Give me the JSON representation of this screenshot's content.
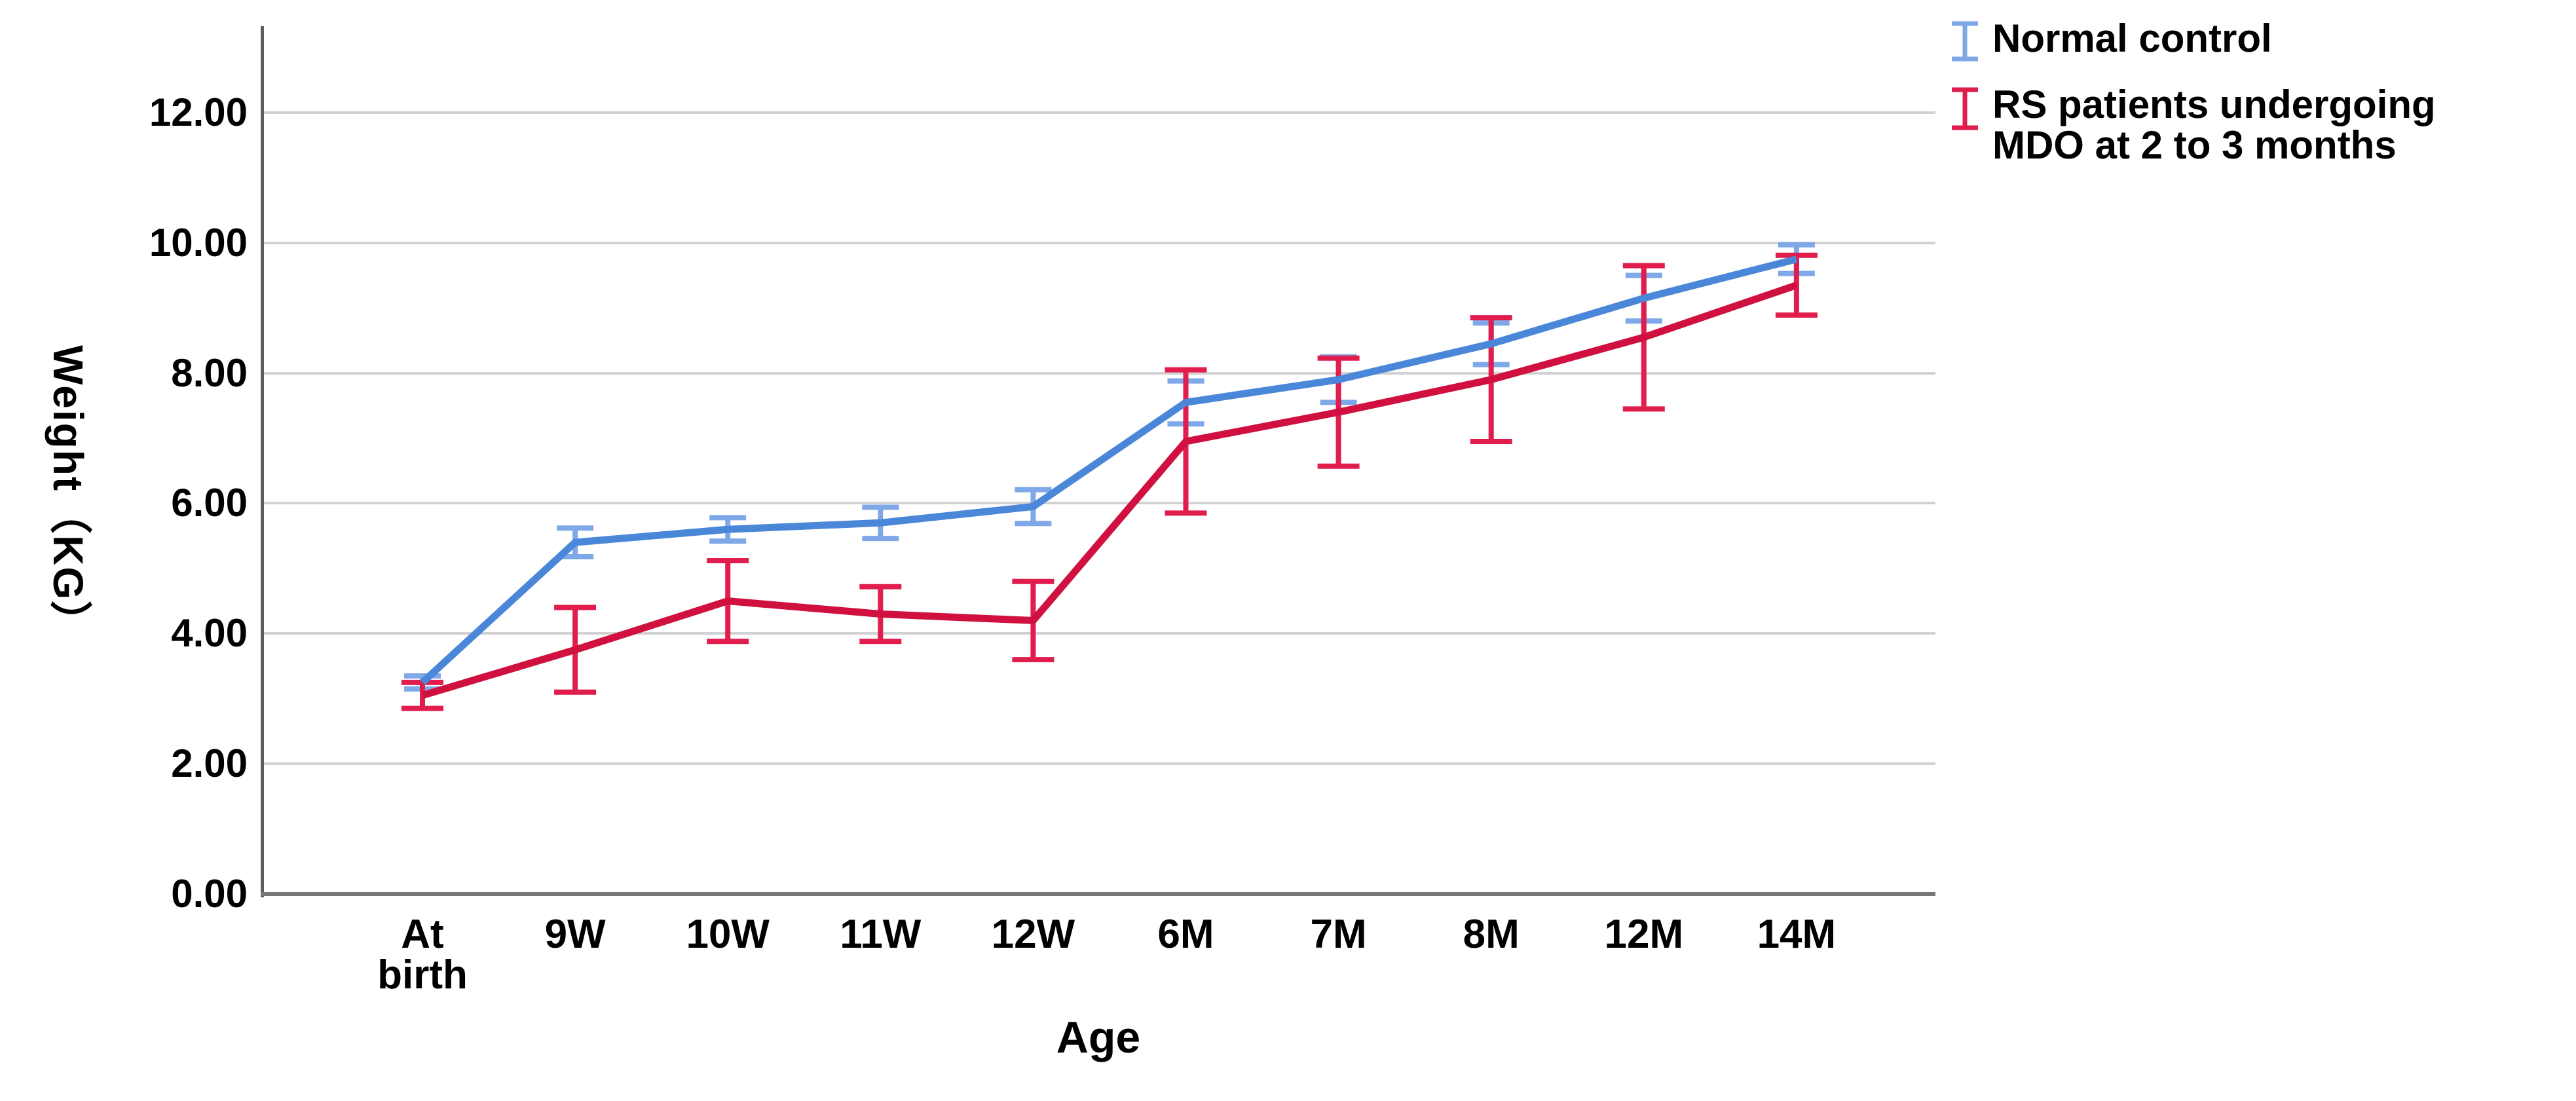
{
  "chart_data": {
    "type": "line",
    "title": "",
    "x_axis": {
      "title": "Age",
      "categories": [
        "At\nbirth",
        "9W",
        "10W",
        "11W",
        "12W",
        "6M",
        "7M",
        "8M",
        "12M",
        "14M"
      ]
    },
    "y_axis": {
      "title": "Weight（KG）",
      "min": 0,
      "max": 12,
      "tick_step": 2,
      "tick_labels": [
        "0.00",
        "2.00",
        "4.00",
        "6.00",
        "8.00",
        "10.00",
        "12.00"
      ]
    },
    "grid": true,
    "legend_position": "top-right",
    "error_bars": true,
    "series": [
      {
        "name": "Normal control",
        "legend_label": "Normal control",
        "color": "#4b87d9",
        "error_color": "#7fa8e8",
        "values": [
          3.25,
          5.4,
          5.6,
          5.7,
          5.95,
          7.55,
          7.9,
          8.45,
          9.15,
          9.75
        ],
        "errors": [
          0.1,
          0.22,
          0.18,
          0.24,
          0.26,
          0.33,
          0.35,
          0.32,
          0.35,
          0.22
        ]
      },
      {
        "name": "RS patients undergoing MDO at 2 to 3 months",
        "legend_label": "RS patients undergoing\nMDO at 2 to 3 months",
        "color": "#d0103f",
        "error_color": "#e11d4e",
        "values": [
          3.05,
          3.75,
          4.5,
          4.3,
          4.2,
          6.95,
          7.4,
          7.9,
          8.55,
          9.35
        ],
        "errors": [
          0.2,
          0.65,
          0.62,
          0.42,
          0.6,
          1.1,
          0.83,
          0.95,
          1.1,
          0.46
        ]
      }
    ]
  },
  "colors": {
    "background": "#ffffff",
    "gridline": "#d2d2d2",
    "y_axis_line": "#5e5e5e",
    "x_axis_line": "#787878",
    "text": "#000000",
    "series_blue": "#4b87d9",
    "series_blue_error": "#7fa8e8",
    "series_red": "#d0103f",
    "series_red_error": "#e11d4e"
  }
}
